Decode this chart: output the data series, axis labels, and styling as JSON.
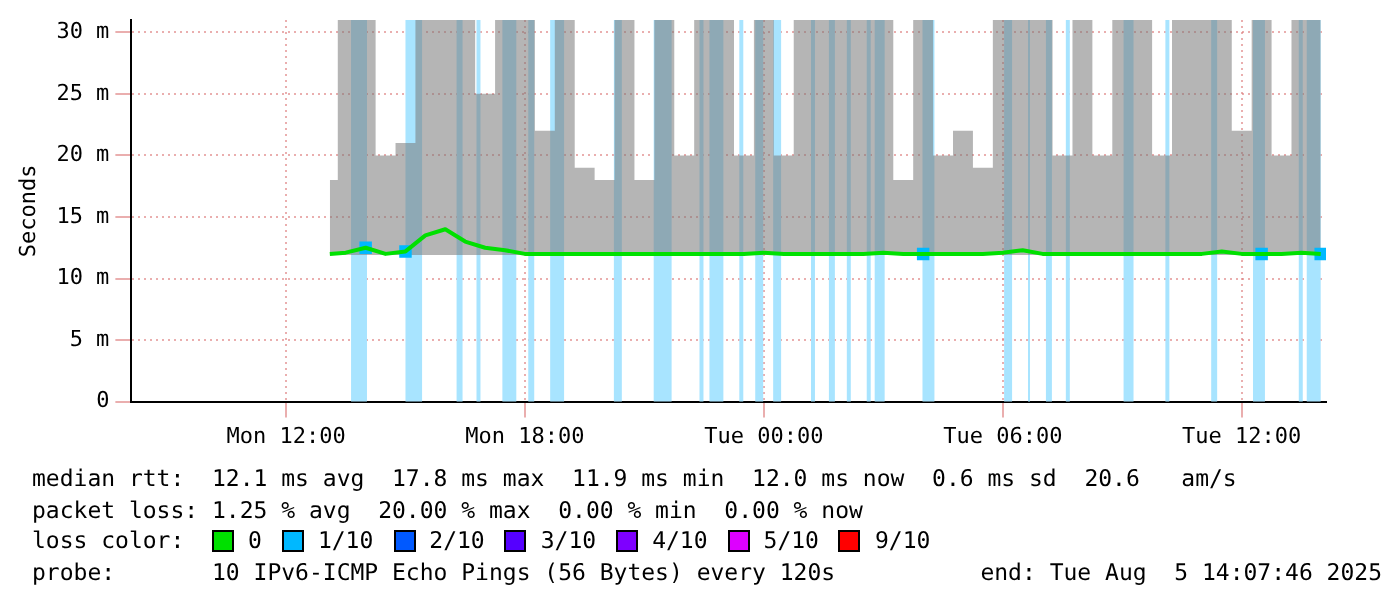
{
  "chart_data": {
    "type": "line",
    "ylabel": "Seconds",
    "legend_title": "loss color:",
    "legend": "bottom",
    "grid": true,
    "marker": "none",
    "line_style": "solid",
    "xlim": [
      "2025-08-04T08:07",
      "2025-08-05T14:07"
    ],
    "xticks": [
      {
        "value": "2025-08-04T12:00",
        "label": "Mon 12:00"
      },
      {
        "value": "2025-08-04T18:00",
        "label": "Mon 18:00"
      },
      {
        "value": "2025-08-05T00:00",
        "label": "Tue 00:00"
      },
      {
        "value": "2025-08-05T06:00",
        "label": "Tue 06:00"
      },
      {
        "value": "2025-08-05T12:00",
        "label": "Tue 12:00"
      }
    ],
    "ylim": [
      0,
      31
    ],
    "yticks": [
      0,
      {
        "value": 5,
        "label": "5 m"
      },
      {
        "value": 10,
        "label": "10 m"
      },
      {
        "value": 15,
        "label": "15 m"
      },
      {
        "value": 20,
        "label": "20 m"
      },
      {
        "value": 25,
        "label": "25 m"
      },
      {
        "value": 30,
        "label": "30 m"
      }
    ],
    "x": [
      "2025-08-04T13:06",
      "2025-08-04T13:30",
      "2025-08-04T14:00",
      "2025-08-04T14:30",
      "2025-08-04T15:00",
      "2025-08-04T15:30",
      "2025-08-04T16:00",
      "2025-08-04T16:30",
      "2025-08-04T17:00",
      "2025-08-04T17:30",
      "2025-08-04T18:00",
      "2025-08-04T18:30",
      "2025-08-04T19:00",
      "2025-08-04T19:30",
      "2025-08-04T20:00",
      "2025-08-04T20:30",
      "2025-08-04T21:00",
      "2025-08-04T21:30",
      "2025-08-04T22:00",
      "2025-08-04T22:30",
      "2025-08-04T23:00",
      "2025-08-04T23:30",
      "2025-08-05T00:00",
      "2025-08-05T00:30",
      "2025-08-05T01:00",
      "2025-08-05T01:30",
      "2025-08-05T02:00",
      "2025-08-05T02:30",
      "2025-08-05T03:00",
      "2025-08-05T03:30",
      "2025-08-05T04:00",
      "2025-08-05T04:30",
      "2025-08-05T05:00",
      "2025-08-05T05:30",
      "2025-08-05T06:00",
      "2025-08-05T06:30",
      "2025-08-05T07:00",
      "2025-08-05T07:30",
      "2025-08-05T08:00",
      "2025-08-05T08:30",
      "2025-08-05T09:00",
      "2025-08-05T09:30",
      "2025-08-05T10:00",
      "2025-08-05T10:30",
      "2025-08-05T11:00",
      "2025-08-05T11:30",
      "2025-08-05T12:00",
      "2025-08-05T12:30",
      "2025-08-05T13:00",
      "2025-08-05T13:30",
      "2025-08-05T13:59"
    ],
    "series": [
      {
        "name": "0",
        "color": "#00e000",
        "values": [
          12.0,
          12.1,
          12.5,
          12.0,
          12.2,
          13.5,
          14.0,
          13.0,
          12.5,
          12.3,
          12.0,
          12.0,
          12.0,
          12.0,
          12.0,
          12.0,
          12.0,
          12.0,
          12.0,
          12.0,
          12.0,
          12.0,
          12.1,
          12.0,
          12.0,
          12.0,
          12.0,
          12.0,
          12.1,
          12.0,
          12.0,
          12.0,
          12.0,
          12.0,
          12.1,
          12.3,
          12.0,
          12.0,
          12.0,
          12.0,
          12.0,
          12.0,
          12.0,
          12.0,
          12.0,
          12.2,
          12.0,
          12.0,
          12.0,
          12.1,
          12.0
        ],
        "lower": [
          11.9,
          11.9,
          11.9,
          11.9,
          11.9,
          11.9,
          11.9,
          11.9,
          11.9,
          11.9,
          11.9,
          11.9,
          11.9,
          11.9,
          11.9,
          11.9,
          11.9,
          11.9,
          11.9,
          11.9,
          11.9,
          11.9,
          11.9,
          11.9,
          11.9,
          11.9,
          11.9,
          11.9,
          11.9,
          11.9,
          11.9,
          11.9,
          11.9,
          11.9,
          11.9,
          11.9,
          11.9,
          11.9,
          11.9,
          11.9,
          11.9,
          11.9,
          11.9,
          11.9,
          11.9,
          11.9,
          11.9,
          11.9,
          11.9,
          11.9,
          11.9
        ],
        "upper": [
          18,
          31,
          31,
          20,
          21,
          31,
          31,
          31,
          25,
          31,
          31,
          22,
          31,
          19,
          18,
          31,
          18,
          31,
          20,
          31,
          31,
          20,
          31,
          20,
          31,
          31,
          31,
          31,
          31,
          18,
          31,
          20,
          22,
          19,
          31,
          31,
          31,
          20,
          31,
          20,
          31,
          31,
          20,
          31,
          31,
          31,
          22,
          31,
          20,
          31,
          31
        ]
      },
      {
        "name": "1/10",
        "type": "scatter",
        "color": "#00b8ff",
        "marker": "square",
        "values": [
          null,
          null,
          12.5,
          null,
          12.2,
          null,
          null,
          null,
          null,
          null,
          null,
          null,
          null,
          null,
          null,
          null,
          null,
          null,
          null,
          null,
          null,
          null,
          null,
          null,
          null,
          null,
          null,
          null,
          null,
          null,
          12.0,
          null,
          null,
          null,
          null,
          null,
          null,
          null,
          null,
          null,
          null,
          null,
          null,
          null,
          null,
          null,
          null,
          12.0,
          null,
          null,
          12.0
        ]
      },
      {
        "name": "2/10",
        "color": "#0059ff",
        "values": [
          null,
          null,
          null,
          null,
          null,
          null,
          null,
          null,
          null,
          null,
          null,
          null,
          null,
          null,
          null,
          null,
          null,
          null,
          null,
          null,
          null,
          null,
          null,
          null,
          null,
          null,
          null,
          null,
          null,
          null,
          null,
          null,
          null,
          null,
          null,
          null,
          null,
          null,
          null,
          null,
          null,
          null,
          null,
          null,
          null,
          null,
          null,
          null,
          null,
          null,
          null
        ]
      },
      {
        "name": "3/10",
        "color": "#5500ff",
        "values": [
          null,
          null,
          null,
          null,
          null,
          null,
          null,
          null,
          null,
          null,
          null,
          null,
          null,
          null,
          null,
          null,
          null,
          null,
          null,
          null,
          null,
          null,
          null,
          null,
          null,
          null,
          null,
          null,
          null,
          null,
          null,
          null,
          null,
          null,
          null,
          null,
          null,
          null,
          null,
          null,
          null,
          null,
          null,
          null,
          null,
          null,
          null,
          null,
          null,
          null,
          null
        ]
      },
      {
        "name": "4/10",
        "color": "#7e00ff",
        "values": [
          null,
          null,
          null,
          null,
          null,
          null,
          null,
          null,
          null,
          null,
          null,
          null,
          null,
          null,
          null,
          null,
          null,
          null,
          null,
          null,
          null,
          null,
          null,
          null,
          null,
          null,
          null,
          null,
          null,
          null,
          null,
          null,
          null,
          null,
          null,
          null,
          null,
          null,
          null,
          null,
          null,
          null,
          null,
          null,
          null,
          null,
          null,
          null,
          null,
          null,
          null
        ]
      },
      {
        "name": "5/10",
        "color": "#dd00ff",
        "values": [
          null,
          null,
          null,
          null,
          null,
          null,
          null,
          null,
          null,
          null,
          null,
          null,
          null,
          null,
          null,
          null,
          null,
          null,
          null,
          null,
          null,
          null,
          null,
          null,
          null,
          null,
          null,
          null,
          null,
          null,
          null,
          null,
          null,
          null,
          null,
          null,
          null,
          null,
          null,
          null,
          null,
          null,
          null,
          null,
          null,
          null,
          null,
          null,
          null,
          null,
          null
        ]
      },
      {
        "name": "9/10",
        "color": "#ff0000",
        "values": [
          null,
          null,
          null,
          null,
          null,
          null,
          null,
          null,
          null,
          null,
          null,
          null,
          null,
          null,
          null,
          null,
          null,
          null,
          null,
          null,
          null,
          null,
          null,
          null,
          null,
          null,
          null,
          null,
          null,
          null,
          null,
          null,
          null,
          null,
          null,
          null,
          null,
          null,
          null,
          null,
          null,
          null,
          null,
          null,
          null,
          null,
          null,
          null,
          null,
          null,
          null
        ]
      }
    ],
    "bands": [
      {
        "axis": "x",
        "from": "2025-08-04T13:38",
        "to": "2025-08-04T14:02",
        "color": "#a8e4ff"
      },
      {
        "axis": "x",
        "from": "2025-08-04T15:00",
        "to": "2025-08-04T15:25",
        "color": "#a8e4ff"
      },
      {
        "axis": "x",
        "from": "2025-08-04T16:17",
        "to": "2025-08-04T16:26",
        "color": "#a8e4ff"
      },
      {
        "axis": "x",
        "from": "2025-08-04T16:47",
        "to": "2025-08-04T16:53",
        "color": "#a8e4ff"
      },
      {
        "axis": "x",
        "from": "2025-08-04T17:26",
        "to": "2025-08-04T17:47",
        "color": "#a8e4ff"
      },
      {
        "axis": "x",
        "from": "2025-08-04T18:05",
        "to": "2025-08-04T18:14",
        "color": "#a8e4ff"
      },
      {
        "axis": "x",
        "from": "2025-08-04T18:38",
        "to": "2025-08-04T18:59",
        "color": "#a8e4ff"
      },
      {
        "axis": "x",
        "from": "2025-08-04T20:14",
        "to": "2025-08-04T20:26",
        "color": "#a8e4ff"
      },
      {
        "axis": "x",
        "from": "2025-08-04T21:14",
        "to": "2025-08-04T21:41",
        "color": "#a8e4ff"
      },
      {
        "axis": "x",
        "from": "2025-08-04T22:23",
        "to": "2025-08-04T22:29",
        "color": "#a8e4ff"
      },
      {
        "axis": "x",
        "from": "2025-08-04T22:38",
        "to": "2025-08-04T22:59",
        "color": "#a8e4ff"
      },
      {
        "axis": "x",
        "from": "2025-08-04T23:23",
        "to": "2025-08-04T23:29",
        "color": "#a8e4ff"
      },
      {
        "axis": "x",
        "from": "2025-08-04T23:47",
        "to": "2025-08-04T23:59",
        "color": "#a8e4ff"
      },
      {
        "axis": "x",
        "from": "2025-08-05T00:14",
        "to": "2025-08-05T00:26",
        "color": "#a8e4ff"
      },
      {
        "axis": "x",
        "from": "2025-08-05T01:11",
        "to": "2025-08-05T01:17",
        "color": "#a8e4ff"
      },
      {
        "axis": "x",
        "from": "2025-08-05T01:38",
        "to": "2025-08-05T01:47",
        "color": "#a8e4ff"
      },
      {
        "axis": "x",
        "from": "2025-08-05T02:05",
        "to": "2025-08-05T02:11",
        "color": "#a8e4ff"
      },
      {
        "axis": "x",
        "from": "2025-08-05T02:35",
        "to": "2025-08-05T02:41",
        "color": "#a8e4ff"
      },
      {
        "axis": "x",
        "from": "2025-08-05T02:47",
        "to": "2025-08-05T03:02",
        "color": "#a8e4ff"
      },
      {
        "axis": "x",
        "from": "2025-08-05T03:59",
        "to": "2025-08-05T04:17",
        "color": "#a8e4ff"
      },
      {
        "axis": "x",
        "from": "2025-08-05T06:02",
        "to": "2025-08-05T06:14",
        "color": "#a8e4ff"
      },
      {
        "axis": "x",
        "from": "2025-08-05T06:38",
        "to": "2025-08-05T06:41",
        "color": "#a8e4ff"
      },
      {
        "axis": "x",
        "from": "2025-08-05T07:05",
        "to": "2025-08-05T07:14",
        "color": "#a8e4ff"
      },
      {
        "axis": "x",
        "from": "2025-08-05T07:35",
        "to": "2025-08-05T07:41",
        "color": "#a8e4ff"
      },
      {
        "axis": "x",
        "from": "2025-08-05T09:02",
        "to": "2025-08-05T09:17",
        "color": "#a8e4ff"
      },
      {
        "axis": "x",
        "from": "2025-08-05T10:05",
        "to": "2025-08-05T10:11",
        "color": "#a8e4ff"
      },
      {
        "axis": "x",
        "from": "2025-08-05T11:14",
        "to": "2025-08-05T11:23",
        "color": "#a8e4ff"
      },
      {
        "axis": "x",
        "from": "2025-08-05T12:17",
        "to": "2025-08-05T12:35",
        "color": "#a8e4ff"
      },
      {
        "axis": "x",
        "from": "2025-08-05T13:26",
        "to": "2025-08-05T13:32",
        "color": "#a8e4ff"
      },
      {
        "axis": "x",
        "from": "2025-08-05T13:38",
        "to": "2025-08-05T13:59",
        "color": "#a8e4ff"
      }
    ],
    "annotations": [
      "median rtt:  12.1 ms avg  17.8 ms max  11.9 ms min  12.0 ms now  0.6 ms sd  20.6   am/s",
      "packet loss: 1.25 % avg  20.00 % max  0.00 % min  0.00 % now",
      "probe:       10 IPv6-ICMP Echo Pings (56 Bytes) every 120s",
      "end: Tue Aug  5 14:07:46 2025"
    ]
  }
}
